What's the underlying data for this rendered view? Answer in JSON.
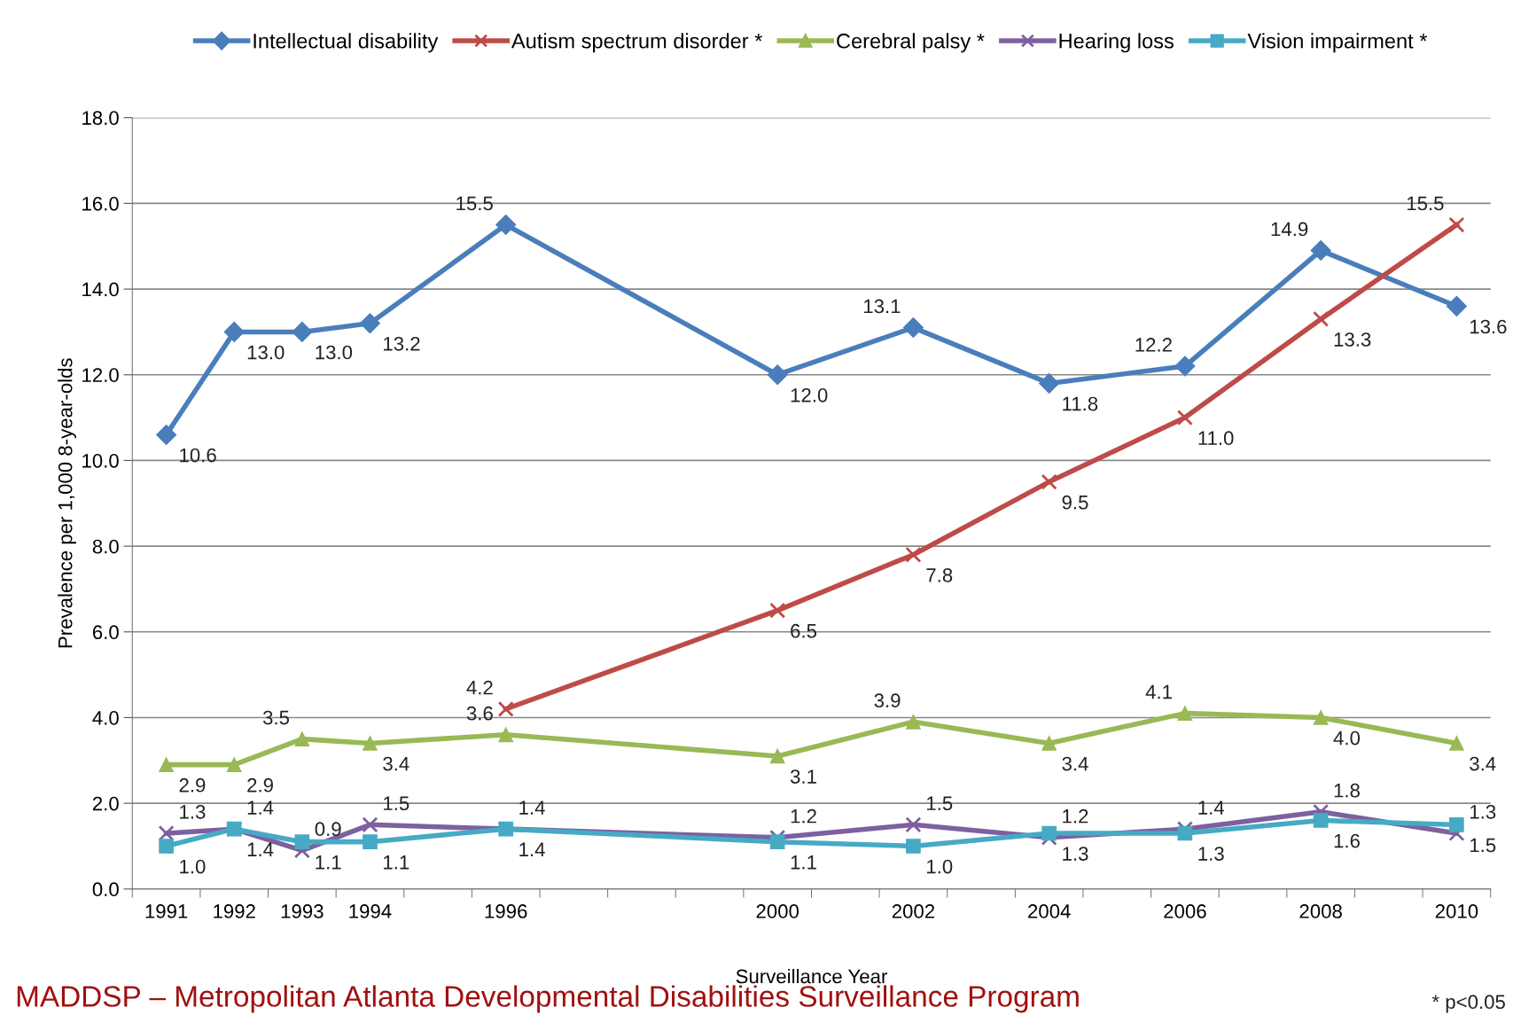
{
  "chart_data": {
    "type": "line",
    "xlabel": "Surveillance Year",
    "ylabel": "Prevalence per 1,000 8-year-olds",
    "x": [
      1991,
      1992,
      1993,
      1994,
      1996,
      2000,
      2002,
      2004,
      2006,
      2008,
      2010
    ],
    "series": [
      {
        "name": "Intellectual disability",
        "color": "#4a7ebb",
        "marker": "diamond",
        "values": [
          10.6,
          13.0,
          13.0,
          13.2,
          15.5,
          12.0,
          13.1,
          11.8,
          12.2,
          14.9,
          13.6
        ],
        "value_labels": [
          "10.6",
          "13.0",
          "13.0",
          "13.2",
          "15.5",
          "12.0",
          "13.1",
          "11.8",
          "12.2",
          "14.9",
          "13.6"
        ]
      },
      {
        "name": "Autism spectrum disorder *",
        "color": "#be4b48",
        "marker": "cross",
        "values": [
          null,
          null,
          null,
          null,
          4.2,
          6.5,
          7.8,
          9.5,
          11.0,
          13.3,
          15.5
        ],
        "value_labels": [
          null,
          null,
          null,
          null,
          "4.2",
          "6.5",
          "7.8",
          "9.5",
          "11.0",
          "13.3",
          "15.5"
        ]
      },
      {
        "name": "Cerebral palsy *",
        "color": "#98b954",
        "marker": "triangle",
        "values": [
          2.9,
          2.9,
          3.5,
          3.4,
          3.6,
          3.1,
          3.9,
          3.4,
          4.1,
          4.0,
          3.4
        ],
        "value_labels": [
          "2.9",
          "2.9",
          "3.5",
          "3.4",
          "3.6",
          "3.1",
          "3.9",
          "3.4",
          "4.1",
          "4.0",
          "3.4"
        ]
      },
      {
        "name": "Hearing loss",
        "color": "#7d60a0",
        "marker": "cross",
        "values": [
          1.3,
          1.4,
          0.9,
          1.5,
          1.4,
          1.2,
          1.5,
          1.2,
          1.4,
          1.8,
          1.3
        ],
        "value_labels": [
          "1.3",
          "1.4",
          "0.9",
          "1.5",
          "1.4",
          "1.2",
          "1.5",
          "1.2",
          "1.4",
          "1.8",
          "1.3"
        ]
      },
      {
        "name": "Vision impairment *",
        "color": "#46aac5",
        "marker": "square",
        "values": [
          1.0,
          1.4,
          1.1,
          1.1,
          1.4,
          1.1,
          1.0,
          1.3,
          1.3,
          1.6,
          1.5
        ],
        "value_labels": [
          "1.0",
          "1.4",
          "1.1",
          "1.1",
          "1.4",
          "1.1",
          "1.0",
          "1.3",
          "1.3",
          "1.6",
          "1.5"
        ]
      }
    ],
    "xlim": [
      1990.5,
      2010.5
    ],
    "xticks": [
      {
        "value": 1991,
        "label": "1991"
      },
      {
        "value": 1992,
        "label": "1992"
      },
      {
        "value": 1993,
        "label": "1993"
      },
      {
        "value": 1994,
        "label": "1994"
      },
      {
        "value": 1996,
        "label": "1996"
      },
      {
        "value": 2000,
        "label": "2000"
      },
      {
        "value": 2002,
        "label": "2002"
      },
      {
        "value": 2004,
        "label": "2004"
      },
      {
        "value": 2006,
        "label": "2006"
      },
      {
        "value": 2008,
        "label": "2008"
      },
      {
        "value": 2010,
        "label": "2010"
      },
      {
        "value": 1990.5,
        "label": null
      },
      {
        "value": 1991.5,
        "label": null
      },
      {
        "value": 1992.5,
        "label": null
      },
      {
        "value": 1993.5,
        "label": null
      },
      {
        "value": 1994.5,
        "label": null
      },
      {
        "value": 1995.5,
        "label": null
      },
      {
        "value": 1996.5,
        "label": null
      },
      {
        "value": 1997.5,
        "label": null
      },
      {
        "value": 1998.5,
        "label": null
      },
      {
        "value": 1999.5,
        "label": null
      },
      {
        "value": 2000.5,
        "label": null
      },
      {
        "value": 2001.5,
        "label": null
      },
      {
        "value": 2002.5,
        "label": null
      },
      {
        "value": 2003.5,
        "label": null
      },
      {
        "value": 2004.5,
        "label": null
      },
      {
        "value": 2005.5,
        "label": null
      },
      {
        "value": 2006.5,
        "label": null
      },
      {
        "value": 2007.5,
        "label": null
      },
      {
        "value": 2008.5,
        "label": null
      },
      {
        "value": 2009.5,
        "label": null
      },
      {
        "value": 2010.5,
        "label": null
      }
    ],
    "ylim": [
      0,
      18
    ],
    "yticks": [
      {
        "value": 0,
        "label": "0.0"
      },
      {
        "value": 2,
        "label": "2.0"
      },
      {
        "value": 4,
        "label": "4.0"
      },
      {
        "value": 6,
        "label": "6.0"
      },
      {
        "value": 8,
        "label": "8.0"
      },
      {
        "value": 10,
        "label": "10.0"
      },
      {
        "value": 12,
        "label": "12.0"
      },
      {
        "value": 14,
        "label": "14.0"
      },
      {
        "value": 16,
        "label": "16.0"
      },
      {
        "value": 18,
        "label": "18.0"
      }
    ],
    "grid": "y",
    "legend": "top",
    "line_style": "solid",
    "annotations": [
      "MADDSP – Metropolitan Atlanta Developmental Disabilities Surveillance Program",
      "* p<0.05"
    ]
  }
}
